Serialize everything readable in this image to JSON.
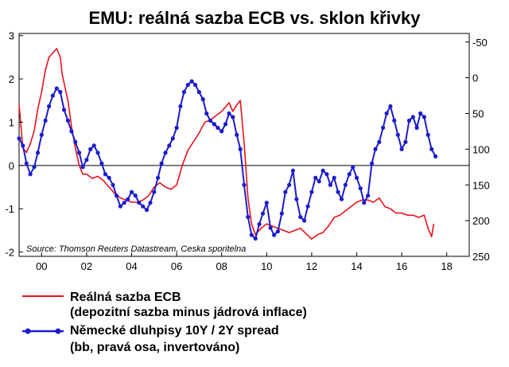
{
  "chart_data": {
    "type": "line",
    "title": "EMU: reálná sazba ECB vs. sklon křivky",
    "source": "Source: Thomson Reuters Datastream, Ceska sporitelna",
    "x_ticks": [
      "00",
      "02",
      "04",
      "06",
      "08",
      "10",
      "12",
      "14",
      "16",
      "18"
    ],
    "x_tick_values": [
      2000,
      2002,
      2004,
      2006,
      2008,
      2010,
      2012,
      2014,
      2016,
      2018
    ],
    "xlim": [
      1999,
      2019
    ],
    "y_left_ticks": [
      "3",
      "2",
      "1",
      "0",
      "-1",
      "-2"
    ],
    "y_left_tick_values": [
      3,
      2,
      1,
      0,
      -1,
      -2
    ],
    "ylim_left": [
      -2.1,
      3.05
    ],
    "y_right_ticks": [
      "-50",
      "0",
      "50",
      "100",
      "150",
      "200",
      "250"
    ],
    "y_right_tick_values": [
      -50,
      0,
      50,
      100,
      150,
      200,
      250
    ],
    "ylim_right": [
      -62,
      250
    ],
    "right_axis_inverted": true,
    "zero_line": true,
    "series": [
      {
        "name": "Reálná sazba ECB",
        "name_line2": "(depozitní sazba minus jádrová inflace)",
        "axis": "left",
        "color": "#e8121b",
        "marker": "none",
        "x": [
          1999.0,
          1999.17,
          1999.33,
          1999.5,
          1999.67,
          1999.83,
          2000.0,
          2000.17,
          2000.33,
          2000.5,
          2000.67,
          2000.83,
          2000.92,
          2001.0,
          2001.17,
          2001.33,
          2001.5,
          2001.67,
          2001.83,
          2002.0,
          2002.25,
          2002.5,
          2002.75,
          2003.0,
          2003.25,
          2003.5,
          2003.75,
          2004.0,
          2004.25,
          2004.5,
          2004.75,
          2005.0,
          2005.25,
          2005.5,
          2005.75,
          2006.0,
          2006.25,
          2006.5,
          2006.75,
          2007.0,
          2007.25,
          2007.5,
          2007.75,
          2008.0,
          2008.17,
          2008.33,
          2008.5,
          2008.67,
          2008.83,
          2009.0,
          2009.17,
          2009.33,
          2009.5,
          2009.75,
          2010.0,
          2010.5,
          2011.0,
          2011.5,
          2012.0,
          2012.25,
          2012.5,
          2012.75,
          2013.0,
          2013.25,
          2013.5,
          2013.75,
          2014.0,
          2014.25,
          2014.5,
          2014.75,
          2015.0,
          2015.25,
          2015.5,
          2015.75,
          2016.0,
          2016.25,
          2016.5,
          2016.75,
          2017.0,
          2017.17,
          2017.33,
          2017.42
        ],
        "values": [
          1.4,
          0.4,
          0.3,
          0.5,
          0.8,
          1.3,
          1.7,
          2.2,
          2.5,
          2.6,
          2.7,
          2.5,
          2.1,
          1.9,
          1.5,
          0.9,
          0.4,
          0.0,
          -0.2,
          -0.2,
          -0.3,
          -0.25,
          -0.35,
          -0.5,
          -0.65,
          -0.75,
          -0.8,
          -0.85,
          -0.85,
          -0.8,
          -0.7,
          -0.5,
          -0.4,
          -0.5,
          -0.55,
          -0.45,
          0.0,
          0.35,
          0.55,
          0.75,
          1.0,
          1.05,
          1.15,
          1.25,
          1.35,
          1.45,
          1.25,
          1.4,
          1.5,
          0.5,
          -0.75,
          -1.35,
          -1.6,
          -1.45,
          -1.35,
          -1.45,
          -1.55,
          -1.45,
          -1.7,
          -1.6,
          -1.55,
          -1.4,
          -1.2,
          -1.15,
          -1.05,
          -0.95,
          -0.85,
          -0.8,
          -0.8,
          -0.85,
          -0.75,
          -0.95,
          -1.0,
          -1.1,
          -1.1,
          -1.15,
          -1.15,
          -1.2,
          -1.15,
          -1.45,
          -1.65,
          -1.35
        ]
      },
      {
        "name": "Německé dluhpisy 10Y / 2Y spread",
        "name_line2": "(bb, pravá osa, invertováno)",
        "axis": "right",
        "color": "#1c1ccc",
        "marker": "circle",
        "x": [
          1999.0,
          1999.17,
          1999.33,
          1999.5,
          1999.67,
          1999.83,
          2000.0,
          2000.17,
          2000.33,
          2000.5,
          2000.67,
          2000.83,
          2001.0,
          2001.17,
          2001.33,
          2001.5,
          2001.67,
          2001.83,
          2002.0,
          2002.17,
          2002.33,
          2002.5,
          2002.67,
          2002.83,
          2003.0,
          2003.17,
          2003.33,
          2003.5,
          2003.67,
          2003.83,
          2004.0,
          2004.17,
          2004.33,
          2004.5,
          2004.67,
          2004.83,
          2005.0,
          2005.17,
          2005.33,
          2005.5,
          2005.67,
          2005.83,
          2006.0,
          2006.17,
          2006.33,
          2006.5,
          2006.67,
          2006.83,
          2007.0,
          2007.17,
          2007.33,
          2007.5,
          2007.67,
          2007.83,
          2008.0,
          2008.17,
          2008.33,
          2008.5,
          2008.67,
          2008.83,
          2009.0,
          2009.17,
          2009.33,
          2009.5,
          2009.67,
          2009.83,
          2010.0,
          2010.17,
          2010.33,
          2010.5,
          2010.67,
          2010.83,
          2011.0,
          2011.17,
          2011.33,
          2011.5,
          2011.67,
          2011.83,
          2012.0,
          2012.17,
          2012.33,
          2012.5,
          2012.67,
          2012.83,
          2013.0,
          2013.17,
          2013.33,
          2013.5,
          2013.67,
          2013.83,
          2014.0,
          2014.17,
          2014.33,
          2014.5,
          2014.67,
          2014.83,
          2015.0,
          2015.17,
          2015.33,
          2015.5,
          2015.67,
          2015.83,
          2016.0,
          2016.17,
          2016.33,
          2016.5,
          2016.67,
          2016.83,
          2017.0,
          2017.17,
          2017.33,
          2017.5
        ],
        "values": [
          85,
          95,
          120,
          135,
          125,
          105,
          80,
          60,
          40,
          25,
          15,
          20,
          45,
          60,
          75,
          90,
          105,
          125,
          115,
          100,
          95,
          105,
          120,
          135,
          140,
          150,
          165,
          180,
          175,
          170,
          160,
          165,
          175,
          180,
          185,
          175,
          160,
          140,
          120,
          105,
          95,
          85,
          70,
          40,
          20,
          10,
          5,
          10,
          20,
          30,
          50,
          60,
          65,
          70,
          75,
          65,
          50,
          55,
          80,
          100,
          150,
          195,
          220,
          225,
          205,
          190,
          175,
          210,
          220,
          215,
          190,
          160,
          150,
          130,
          170,
          195,
          200,
          180,
          160,
          140,
          145,
          130,
          135,
          150,
          140,
          160,
          170,
          150,
          135,
          125,
          140,
          155,
          175,
          165,
          120,
          100,
          90,
          70,
          50,
          40,
          60,
          80,
          100,
          90,
          60,
          55,
          70,
          50,
          55,
          80,
          100,
          110
        ]
      }
    ]
  }
}
